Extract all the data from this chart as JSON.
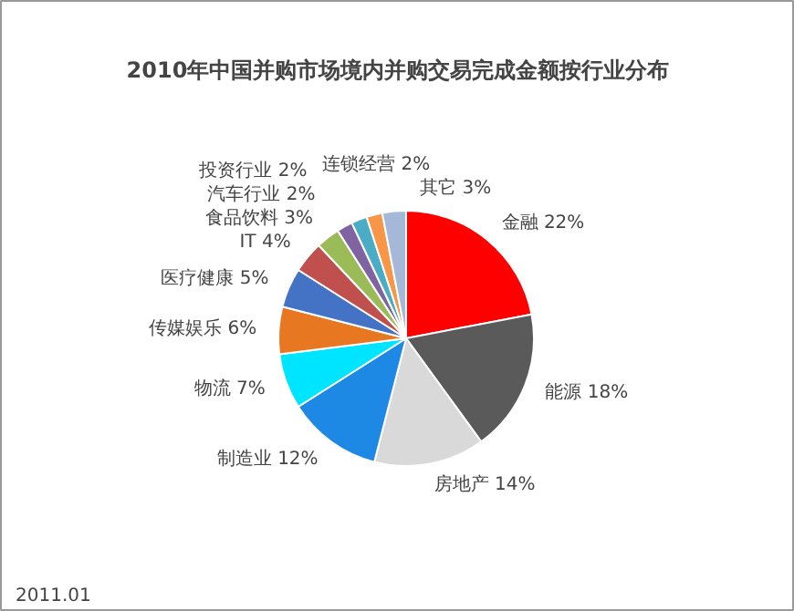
{
  "chart_data": {
    "type": "pie",
    "title": "2010年中国并购市场境内并购交易完成金额按行业分布",
    "categories": [
      "金融",
      "能源",
      "房地产",
      "制造业",
      "物流",
      "传媒娱乐",
      "医疗健康",
      "IT",
      "食品饮料",
      "汽车行业",
      "投资行业",
      "连锁经营",
      "其它"
    ],
    "values": [
      22,
      18,
      14,
      12,
      7,
      6,
      5,
      4,
      3,
      2,
      2,
      2,
      3
    ],
    "value_labels": [
      "22%",
      "18%",
      "14%",
      "12%",
      "7%",
      "6%",
      "5%",
      "4%",
      "3%",
      "2%",
      "2%",
      "2%",
      "3%"
    ],
    "colors": [
      "#ff0000",
      "#5a5a5a",
      "#d9d9d9",
      "#1e88e5",
      "#00e5ff",
      "#e87722",
      "#4472c4",
      "#c0504d",
      "#9bbb59",
      "#8064a2",
      "#4bacc6",
      "#f79646",
      "#a6b8d8"
    ],
    "annotations": [
      "2011.01"
    ]
  }
}
